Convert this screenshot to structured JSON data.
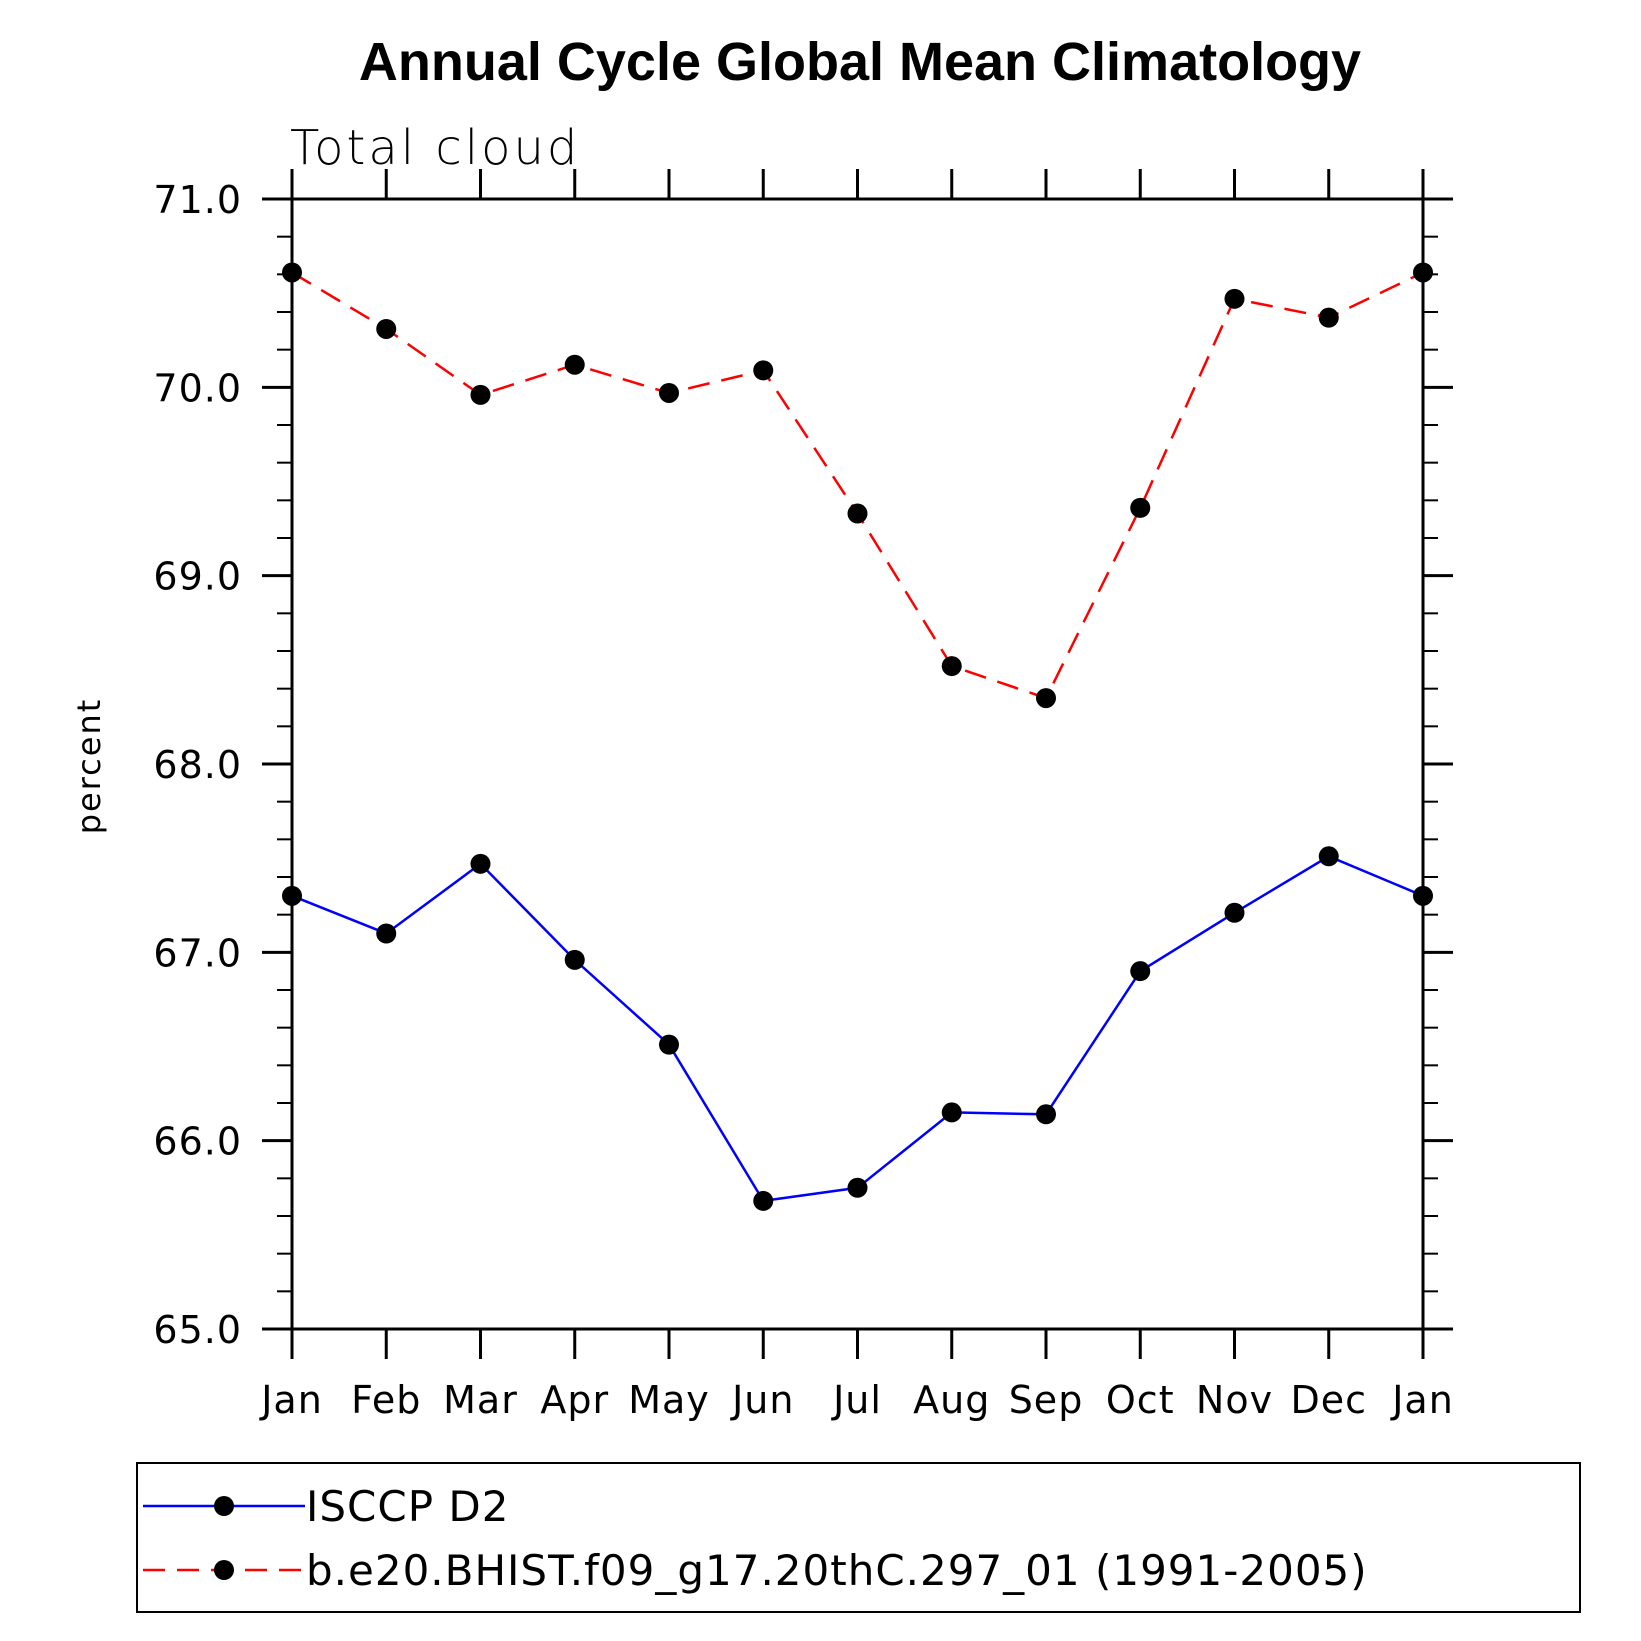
{
  "chart_data": {
    "type": "line",
    "title": "Annual Cycle Global Mean Climatology",
    "subtitle": "Total cloud",
    "xlabel": "",
    "ylabel": "percent",
    "ylim": [
      65.0,
      71.0
    ],
    "yticks": [
      "65.0",
      "66.0",
      "67.0",
      "68.0",
      "69.0",
      "70.0",
      "71.0"
    ],
    "categories": [
      "Jan",
      "Feb",
      "Mar",
      "Apr",
      "May",
      "Jun",
      "Jul",
      "Aug",
      "Sep",
      "Oct",
      "Nov",
      "Dec",
      "Jan"
    ],
    "grid": false,
    "legend_position": "bottom",
    "series": [
      {
        "name": "ISCCP D2",
        "color": "#0000ff",
        "line_style": "solid",
        "marker": "filled-circle",
        "values": [
          67.3,
          67.1,
          67.47,
          66.96,
          66.51,
          65.68,
          65.75,
          66.15,
          66.14,
          66.9,
          67.21,
          67.51,
          67.3
        ]
      },
      {
        "name": "b.e20.BHIST.f09_g17.20thC.297_01 (1991-2005)",
        "color": "#ff0000",
        "line_style": "dashed",
        "marker": "filled-circle",
        "values": [
          70.61,
          70.31,
          69.96,
          70.12,
          69.97,
          70.09,
          69.33,
          68.52,
          68.35,
          69.36,
          70.47,
          70.37,
          70.61
        ]
      }
    ]
  }
}
